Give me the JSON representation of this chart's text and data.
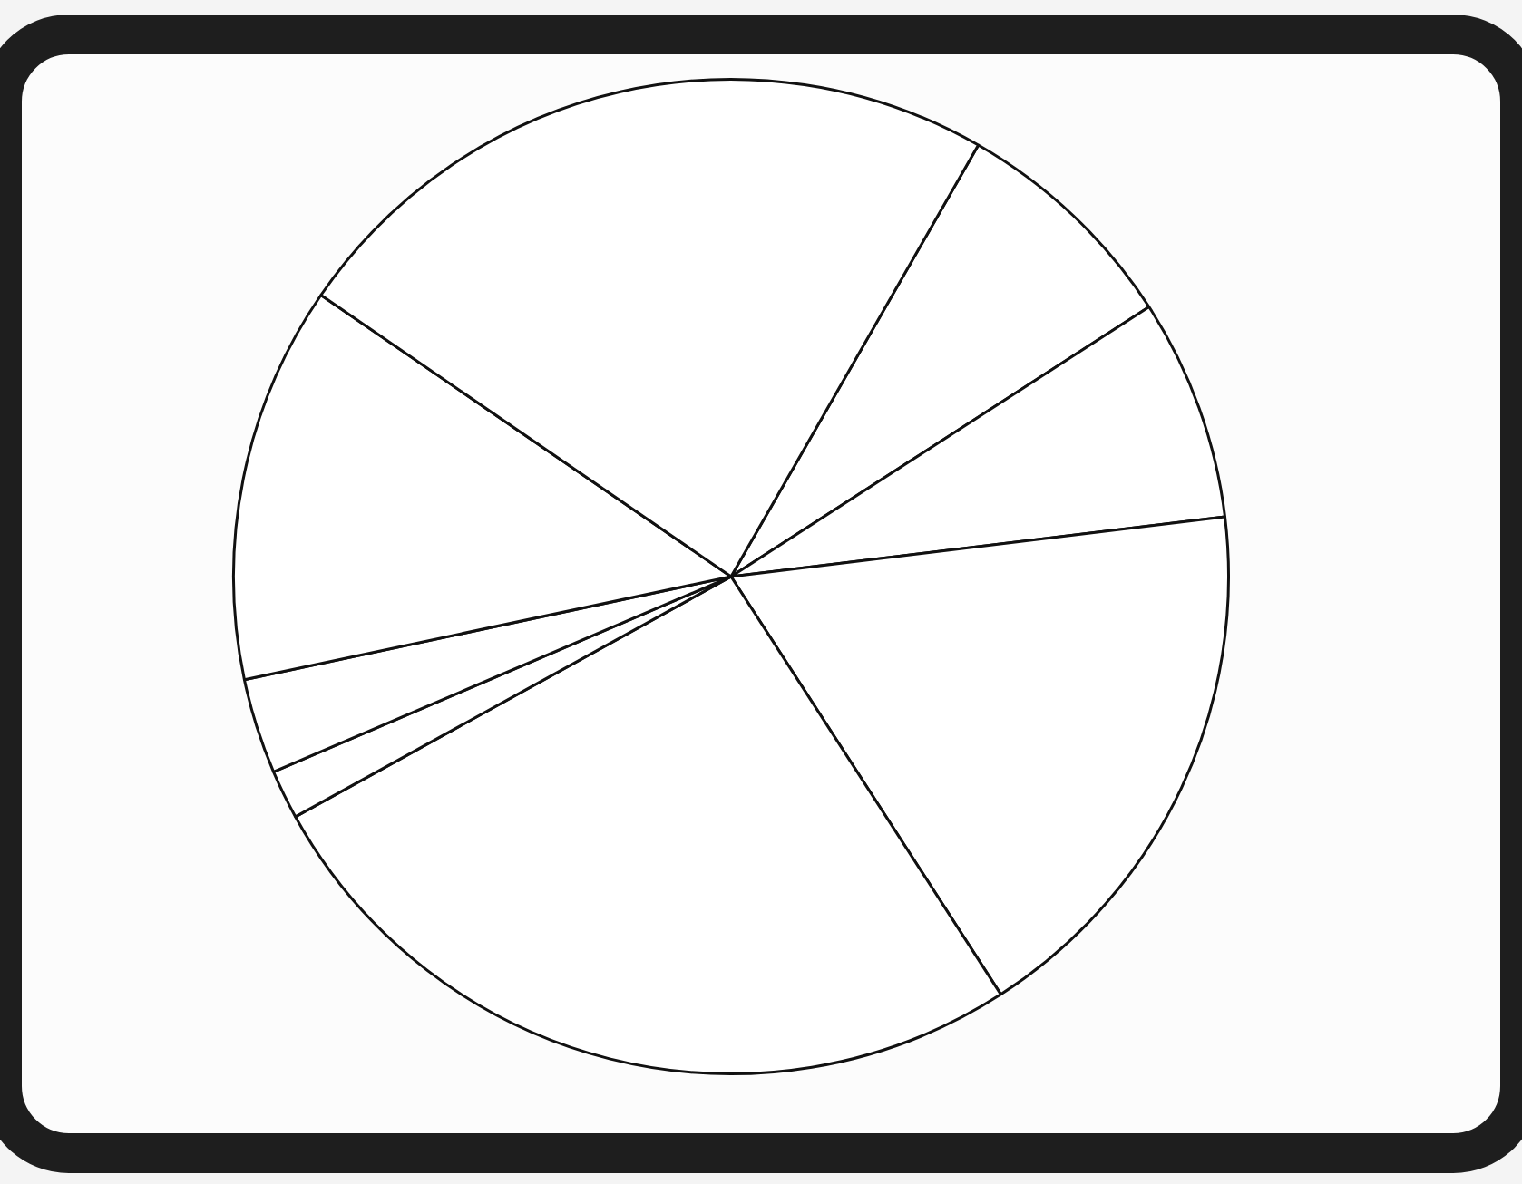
{
  "chart_data": {
    "type": "pie",
    "categories": [
      null,
      null,
      null,
      null,
      null,
      null,
      null,
      null
    ],
    "values": [
      7.6,
      7.2,
      17.8,
      26.1,
      1.6,
      3.1,
      12.9,
      23.7
    ],
    "colors": [
      "#ffffff",
      "#ffffff",
      "#ffffff",
      "#ffffff",
      "#ffffff",
      "#ffffff",
      "#ffffff",
      "#ffffff"
    ]
  }
}
